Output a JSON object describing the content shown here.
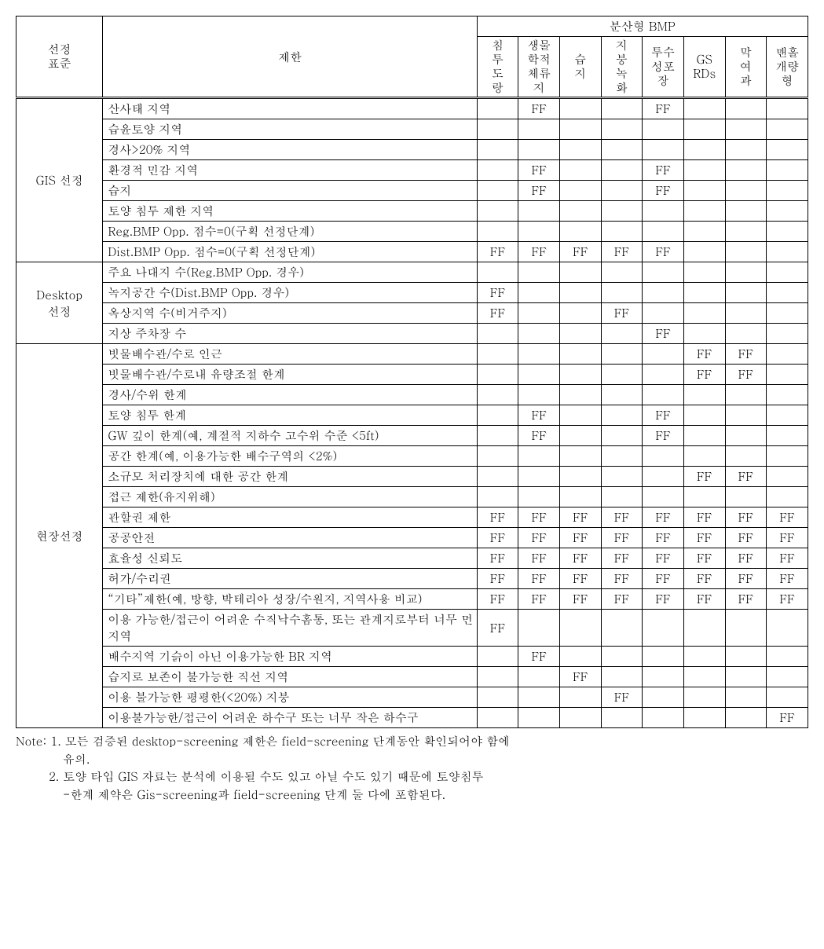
{
  "headers": {
    "criteria": "선정\n표준",
    "limit": "제한",
    "bmp_group": "분산형 BMP",
    "bmp_cols": [
      "침\n투\n도\n랑",
      "생물\n학적\n체류\n지",
      "습\n지",
      "지\n붕\n녹\n화",
      "투수\n성포\n장",
      "GS\nRDs",
      "막\n여\n과",
      "맨홀\n개량\n형"
    ]
  },
  "groups": [
    {
      "name": "GIS 선정",
      "rows": [
        {
          "limit": "산사태 지역",
          "cells": [
            "",
            "FF",
            "",
            "",
            "FF",
            "",
            "",
            ""
          ]
        },
        {
          "limit": "습윤토양 지역",
          "cells": [
            "",
            "",
            "",
            "",
            "",
            "",
            "",
            ""
          ]
        },
        {
          "limit": "경사>20% 지역",
          "cells": [
            "",
            "",
            "",
            "",
            "",
            "",
            "",
            ""
          ]
        },
        {
          "limit": "환경적 민감 지역",
          "cells": [
            "",
            "FF",
            "",
            "",
            "FF",
            "",
            "",
            ""
          ]
        },
        {
          "limit": "습지",
          "cells": [
            "",
            "FF",
            "",
            "",
            "FF",
            "",
            "",
            ""
          ]
        },
        {
          "limit": "토양 침투 제한 지역",
          "cells": [
            "",
            "",
            "",
            "",
            "",
            "",
            "",
            ""
          ]
        },
        {
          "limit": "Reg.BMP Opp. 점수=0(구획 선정단계)",
          "cells": [
            "",
            "",
            "",
            "",
            "",
            "",
            "",
            ""
          ]
        },
        {
          "limit": "Dist.BMP Opp. 점수=0(구획 선정단계)",
          "cells": [
            "FF",
            "FF",
            "FF",
            "FF",
            "FF",
            "",
            "",
            ""
          ]
        }
      ]
    },
    {
      "name": "Desktop\n선정",
      "rows": [
        {
          "limit": "주요 나대지 수(Reg.BMP Opp. 경우)",
          "cells": [
            "",
            "",
            "",
            "",
            "",
            "",
            "",
            ""
          ]
        },
        {
          "limit": "녹지공간 수(Dist.BMP Opp. 경우)",
          "cells": [
            "FF",
            "",
            "",
            "",
            "",
            "",
            "",
            ""
          ]
        },
        {
          "limit": "옥상지역 수(비거주지)",
          "cells": [
            "FF",
            "",
            "",
            "FF",
            "",
            "",
            "",
            ""
          ]
        },
        {
          "limit": "지상 주차장 수",
          "cells": [
            "",
            "",
            "",
            "",
            "FF",
            "",
            "",
            ""
          ]
        }
      ]
    },
    {
      "name": "현장선정",
      "rows": [
        {
          "limit": "빗물배수관/수로 인근",
          "cells": [
            "",
            "",
            "",
            "",
            "",
            "FF",
            "FF",
            ""
          ]
        },
        {
          "limit": "빗물배수관/수로내 유량조절 한계",
          "cells": [
            "",
            "",
            "",
            "",
            "",
            "FF",
            "FF",
            ""
          ]
        },
        {
          "limit": "경사/수위 한계",
          "cells": [
            "",
            "",
            "",
            "",
            "",
            "",
            "",
            ""
          ]
        },
        {
          "limit": "토양 침투 한계",
          "cells": [
            "",
            "FF",
            "",
            "",
            "FF",
            "",
            "",
            ""
          ]
        },
        {
          "limit": "GW 깊이 한계(예, 계절적 지하수 고수위 수준 <5ft)",
          "cells": [
            "",
            "FF",
            "",
            "",
            "FF",
            "",
            "",
            ""
          ]
        },
        {
          "limit": "공간 한계(예, 이용가능한 배수구역의 <2%)",
          "cells": [
            "",
            "",
            "",
            "",
            "",
            "",
            "",
            ""
          ]
        },
        {
          "limit": "소규모 처리장치에 대한 공간 한계",
          "cells": [
            "",
            "",
            "",
            "",
            "",
            "FF",
            "FF",
            ""
          ]
        },
        {
          "limit": "접근 제한(유지위해)",
          "cells": [
            "",
            "",
            "",
            "",
            "",
            "",
            "",
            ""
          ]
        },
        {
          "limit": "관할권 제한",
          "cells": [
            "FF",
            "FF",
            "FF",
            "FF",
            "FF",
            "FF",
            "FF",
            "FF"
          ]
        },
        {
          "limit": "공공안전",
          "cells": [
            "FF",
            "FF",
            "FF",
            "FF",
            "FF",
            "FF",
            "FF",
            "FF"
          ]
        },
        {
          "limit": "효율성 신뢰도",
          "cells": [
            "FF",
            "FF",
            "FF",
            "FF",
            "FF",
            "FF",
            "FF",
            "FF"
          ]
        },
        {
          "limit": "허가/수리권",
          "cells": [
            "FF",
            "FF",
            "FF",
            "FF",
            "FF",
            "FF",
            "FF",
            "FF"
          ]
        },
        {
          "limit": "“기타”제한(예, 방향, 박테리아 성장/수원지, 지역사용 비교)",
          "cells": [
            "FF",
            "FF",
            "FF",
            "FF",
            "FF",
            "FF",
            "FF",
            "FF"
          ]
        },
        {
          "limit": "이용 가능한/접근이 어려운 수직낙수홈통, 또는 관계지로부터 너무 먼 지역",
          "cells": [
            "FF",
            "",
            "",
            "",
            "",
            "",
            "",
            ""
          ]
        },
        {
          "limit": "배수지역 기슭이 아닌 이용가능한 BR 지역",
          "cells": [
            "",
            "FF",
            "",
            "",
            "",
            "",
            "",
            ""
          ]
        },
        {
          "limit": "습지로 보존이 불가능한 직선 지역",
          "cells": [
            "",
            "",
            "FF",
            "",
            "",
            "",
            "",
            ""
          ]
        },
        {
          "limit": "이용 불가능한 평평한(<20%) 지붕",
          "cells": [
            "",
            "",
            "",
            "FF",
            "",
            "",
            "",
            ""
          ]
        },
        {
          "limit": "이용불가능한/접근이 어려운 하수구 또는 너무 작은 하수구",
          "cells": [
            "",
            "",
            "",
            "",
            "",
            "",
            "",
            "FF"
          ]
        }
      ]
    }
  ],
  "notes": {
    "prefix": "Note:",
    "n1_a": "1. 모든 검증된 desktop-screening 제한은 field-screening 단계동안 확인되어야 함에",
    "n1_b": "유의.",
    "n2_a": "2. 토양 타입 GIS 자료는 분석에 이용될 수도 있고 아닐 수도 있기 때문에 토양침투",
    "n2_b": "-한계 제약은 Gis-screening과 field-screening 단계 둘 다에 포함된다."
  }
}
